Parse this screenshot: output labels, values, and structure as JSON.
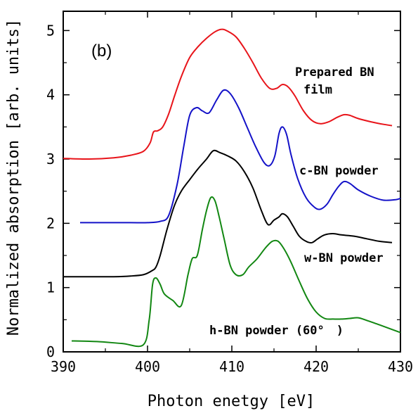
{
  "chart_data": {
    "type": "line",
    "panel_label": "(b)",
    "xlabel": "Photon enetgy [eV]",
    "ylabel": "Normalized absorption [arb. units]",
    "xlim": [
      390,
      430
    ],
    "ylim": [
      0,
      5.3
    ],
    "xticks": [
      "390",
      "400",
      "410",
      "420",
      "430"
    ],
    "yticks": [
      "0",
      "1",
      "2",
      "3",
      "4",
      "5"
    ],
    "grid": false,
    "series": [
      {
        "name": "Prepared BN film",
        "label_lines": [
          "Prepared BN",
          "film"
        ],
        "color": "#e8141a",
        "x": [
          390,
          393,
          396,
          398,
          399.5,
          400.3,
          400.7,
          401.2,
          401.8,
          402.5,
          403.2,
          404,
          405,
          406,
          407,
          408,
          408.8,
          409.5,
          410.5,
          411.5,
          412.5,
          413.5,
          414.5,
          415.3,
          416,
          416.7,
          417.5,
          418.5,
          419.5,
          420.5,
          421.5,
          422.5,
          423.3,
          424,
          425,
          426.5,
          428,
          429
        ],
        "y": [
          3.01,
          3.0,
          3.02,
          3.06,
          3.12,
          3.25,
          3.42,
          3.44,
          3.5,
          3.7,
          3.98,
          4.28,
          4.58,
          4.75,
          4.88,
          4.98,
          5.02,
          4.99,
          4.9,
          4.72,
          4.5,
          4.26,
          4.1,
          4.1,
          4.16,
          4.12,
          3.98,
          3.75,
          3.6,
          3.55,
          3.58,
          3.65,
          3.69,
          3.68,
          3.63,
          3.58,
          3.54,
          3.52
        ]
      },
      {
        "name": "c-BN powder",
        "color": "#1412c8",
        "x": [
          392,
          395,
          398,
          400,
          401.5,
          402.5,
          403.5,
          404.3,
          405,
          405.8,
          406.5,
          407.3,
          408.2,
          409,
          409.8,
          410.8,
          411.8,
          412.8,
          413.8,
          414.5,
          415.1,
          415.6,
          416,
          416.5,
          417,
          417.8,
          418.8,
          419.8,
          420.5,
          421.3,
          422,
          422.7,
          423.3,
          424,
          425,
          426.5,
          428,
          429.5,
          430
        ],
        "y": [
          2.01,
          2.01,
          2.01,
          2.01,
          2.03,
          2.12,
          2.6,
          3.2,
          3.68,
          3.8,
          3.75,
          3.72,
          3.92,
          4.07,
          4.02,
          3.8,
          3.5,
          3.2,
          2.95,
          2.9,
          3.05,
          3.4,
          3.5,
          3.38,
          3.08,
          2.7,
          2.4,
          2.25,
          2.22,
          2.3,
          2.45,
          2.58,
          2.65,
          2.62,
          2.52,
          2.42,
          2.36,
          2.37,
          2.39
        ]
      },
      {
        "name": "w-BN powder",
        "color": "#000000",
        "x": [
          390,
          393,
          396,
          398,
          399.5,
          400.5,
          401,
          401.5,
          402.3,
          403.2,
          404,
          405,
          406,
          407,
          407.8,
          408.6,
          409.5,
          410.5,
          411.5,
          412.5,
          413.5,
          414.3,
          415,
          415.6,
          416,
          416.6,
          417.3,
          418,
          418.8,
          419.5,
          420.2,
          421,
          422,
          423,
          424.5,
          426,
          427.5,
          429
        ],
        "y": [
          1.17,
          1.17,
          1.17,
          1.18,
          1.2,
          1.26,
          1.32,
          1.5,
          1.9,
          2.28,
          2.5,
          2.68,
          2.85,
          3.0,
          3.13,
          3.1,
          3.05,
          2.97,
          2.8,
          2.55,
          2.2,
          1.98,
          2.05,
          2.1,
          2.15,
          2.1,
          1.95,
          1.8,
          1.72,
          1.7,
          1.76,
          1.82,
          1.84,
          1.82,
          1.8,
          1.76,
          1.72,
          1.7
        ]
      },
      {
        "name": "h-BN powder (60°　)",
        "color": "#128712",
        "x": [
          391,
          394,
          397,
          399.5,
          400.2,
          400.6,
          401,
          401.5,
          402,
          403,
          404,
          404.8,
          405.3,
          405.9,
          406.5,
          407,
          407.5,
          408,
          408.5,
          409.1,
          409.8,
          410.5,
          411.3,
          412,
          413,
          414,
          414.8,
          415.5,
          416.2,
          417,
          418,
          419,
          420,
          421,
          422,
          423,
          424,
          425,
          426,
          427.5,
          430
        ],
        "y": [
          0.17,
          0.16,
          0.13,
          0.11,
          0.5,
          1.05,
          1.15,
          1.05,
          0.9,
          0.8,
          0.72,
          1.2,
          1.45,
          1.5,
          1.9,
          2.2,
          2.4,
          2.35,
          2.1,
          1.75,
          1.35,
          1.2,
          1.2,
          1.32,
          1.45,
          1.62,
          1.72,
          1.72,
          1.6,
          1.4,
          1.1,
          0.82,
          0.62,
          0.52,
          0.51,
          0.51,
          0.52,
          0.53,
          0.49,
          0.42,
          0.3
        ]
      }
    ]
  }
}
